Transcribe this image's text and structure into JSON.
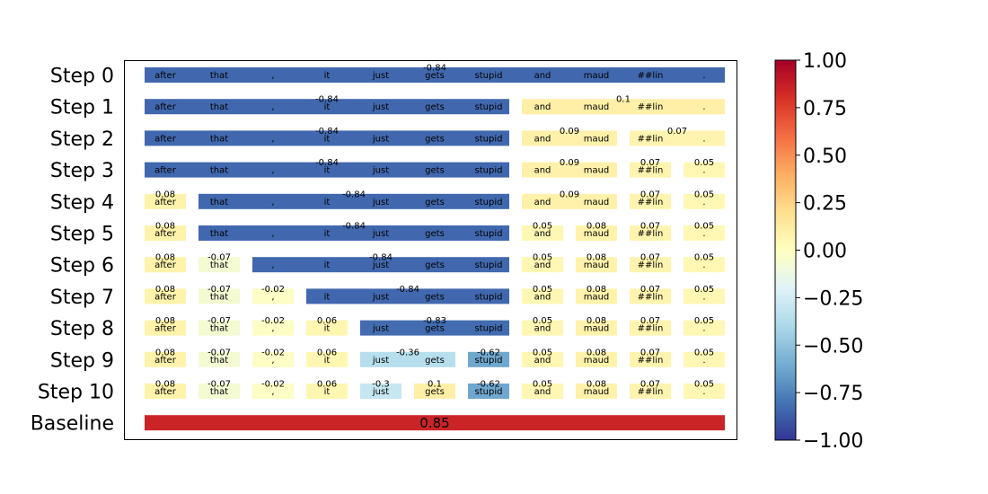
{
  "chart_data": {
    "type": "heatmap",
    "colormap": "RdYlBu_r",
    "color_range": [
      -1.0,
      1.0
    ],
    "colorbar_ticks": [
      "1.00",
      "0.75",
      "0.50",
      "0.25",
      "0.00",
      "−0.25",
      "−0.50",
      "−0.75",
      "−1.00"
    ],
    "tokens": [
      "after",
      "that",
      ",",
      "it",
      "just",
      "gets",
      "stupid",
      "and",
      "maud",
      "##lin",
      "."
    ],
    "rows": [
      {
        "label": "Step 0",
        "segments": [
          {
            "start": 0,
            "end": 10,
            "value": -0.84,
            "text": "-0.84"
          }
        ]
      },
      {
        "label": "Step 1",
        "segments": [
          {
            "start": 0,
            "end": 6,
            "value": -0.84,
            "text": "-0.84"
          },
          {
            "start": 7,
            "end": 10,
            "value": 0.1,
            "text": "0.1"
          }
        ]
      },
      {
        "label": "Step 2",
        "segments": [
          {
            "start": 0,
            "end": 6,
            "value": -0.84,
            "text": "-0.84"
          },
          {
            "start": 7,
            "end": 8,
            "value": 0.09,
            "text": "0.09"
          },
          {
            "start": 9,
            "end": 10,
            "value": 0.07,
            "text": "0.07"
          }
        ]
      },
      {
        "label": "Step 3",
        "segments": [
          {
            "start": 0,
            "end": 6,
            "value": -0.84,
            "text": "-0.84"
          },
          {
            "start": 7,
            "end": 8,
            "value": 0.09,
            "text": "0.09"
          },
          {
            "start": 9,
            "end": 9,
            "value": 0.07,
            "text": "0.07"
          },
          {
            "start": 10,
            "end": 10,
            "value": 0.05,
            "text": "0.05"
          }
        ]
      },
      {
        "label": "Step 4",
        "segments": [
          {
            "start": 0,
            "end": 0,
            "value": 0.08,
            "text": "0.08"
          },
          {
            "start": 1,
            "end": 6,
            "value": -0.84,
            "text": "-0.84"
          },
          {
            "start": 7,
            "end": 8,
            "value": 0.09,
            "text": "0.09"
          },
          {
            "start": 9,
            "end": 9,
            "value": 0.07,
            "text": "0.07"
          },
          {
            "start": 10,
            "end": 10,
            "value": 0.05,
            "text": "0.05"
          }
        ]
      },
      {
        "label": "Step 5",
        "segments": [
          {
            "start": 0,
            "end": 0,
            "value": 0.08,
            "text": "0.08"
          },
          {
            "start": 1,
            "end": 6,
            "value": -0.84,
            "text": "-0.84"
          },
          {
            "start": 7,
            "end": 7,
            "value": 0.05,
            "text": "0.05"
          },
          {
            "start": 8,
            "end": 8,
            "value": 0.08,
            "text": "0.08"
          },
          {
            "start": 9,
            "end": 9,
            "value": 0.07,
            "text": "0.07"
          },
          {
            "start": 10,
            "end": 10,
            "value": 0.05,
            "text": "0.05"
          }
        ]
      },
      {
        "label": "Step 6",
        "segments": [
          {
            "start": 0,
            "end": 0,
            "value": 0.08,
            "text": "0.08"
          },
          {
            "start": 1,
            "end": 1,
            "value": -0.07,
            "text": "-0.07"
          },
          {
            "start": 2,
            "end": 6,
            "value": -0.84,
            "text": "-0.84"
          },
          {
            "start": 7,
            "end": 7,
            "value": 0.05,
            "text": "0.05"
          },
          {
            "start": 8,
            "end": 8,
            "value": 0.08,
            "text": "0.08"
          },
          {
            "start": 9,
            "end": 9,
            "value": 0.07,
            "text": "0.07"
          },
          {
            "start": 10,
            "end": 10,
            "value": 0.05,
            "text": "0.05"
          }
        ]
      },
      {
        "label": "Step 7",
        "segments": [
          {
            "start": 0,
            "end": 0,
            "value": 0.08,
            "text": "0.08"
          },
          {
            "start": 1,
            "end": 1,
            "value": -0.07,
            "text": "-0.07"
          },
          {
            "start": 2,
            "end": 2,
            "value": -0.02,
            "text": "-0.02"
          },
          {
            "start": 3,
            "end": 6,
            "value": -0.84,
            "text": "-0.84"
          },
          {
            "start": 7,
            "end": 7,
            "value": 0.05,
            "text": "0.05"
          },
          {
            "start": 8,
            "end": 8,
            "value": 0.08,
            "text": "0.08"
          },
          {
            "start": 9,
            "end": 9,
            "value": 0.07,
            "text": "0.07"
          },
          {
            "start": 10,
            "end": 10,
            "value": 0.05,
            "text": "0.05"
          }
        ]
      },
      {
        "label": "Step 8",
        "segments": [
          {
            "start": 0,
            "end": 0,
            "value": 0.08,
            "text": "0.08"
          },
          {
            "start": 1,
            "end": 1,
            "value": -0.07,
            "text": "-0.07"
          },
          {
            "start": 2,
            "end": 2,
            "value": -0.02,
            "text": "-0.02"
          },
          {
            "start": 3,
            "end": 3,
            "value": 0.06,
            "text": "0.06"
          },
          {
            "start": 4,
            "end": 6,
            "value": -0.83,
            "text": "-0.83"
          },
          {
            "start": 7,
            "end": 7,
            "value": 0.05,
            "text": "0.05"
          },
          {
            "start": 8,
            "end": 8,
            "value": 0.08,
            "text": "0.08"
          },
          {
            "start": 9,
            "end": 9,
            "value": 0.07,
            "text": "0.07"
          },
          {
            "start": 10,
            "end": 10,
            "value": 0.05,
            "text": "0.05"
          }
        ]
      },
      {
        "label": "Step 9",
        "segments": [
          {
            "start": 0,
            "end": 0,
            "value": 0.08,
            "text": "0.08"
          },
          {
            "start": 1,
            "end": 1,
            "value": -0.07,
            "text": "-0.07"
          },
          {
            "start": 2,
            "end": 2,
            "value": -0.02,
            "text": "-0.02"
          },
          {
            "start": 3,
            "end": 3,
            "value": 0.06,
            "text": "0.06"
          },
          {
            "start": 4,
            "end": 5,
            "value": -0.36,
            "text": "-0.36"
          },
          {
            "start": 6,
            "end": 6,
            "value": -0.62,
            "text": "-0.62"
          },
          {
            "start": 7,
            "end": 7,
            "value": 0.05,
            "text": "0.05"
          },
          {
            "start": 8,
            "end": 8,
            "value": 0.08,
            "text": "0.08"
          },
          {
            "start": 9,
            "end": 9,
            "value": 0.07,
            "text": "0.07"
          },
          {
            "start": 10,
            "end": 10,
            "value": 0.05,
            "text": "0.05"
          }
        ]
      },
      {
        "label": "Step 10",
        "segments": [
          {
            "start": 0,
            "end": 0,
            "value": 0.08,
            "text": "0.08"
          },
          {
            "start": 1,
            "end": 1,
            "value": -0.07,
            "text": "-0.07"
          },
          {
            "start": 2,
            "end": 2,
            "value": -0.02,
            "text": "-0.02"
          },
          {
            "start": 3,
            "end": 3,
            "value": 0.06,
            "text": "0.06"
          },
          {
            "start": 4,
            "end": 4,
            "value": -0.3,
            "text": "-0.3"
          },
          {
            "start": 5,
            "end": 5,
            "value": 0.1,
            "text": "0.1"
          },
          {
            "start": 6,
            "end": 6,
            "value": -0.62,
            "text": "-0.62"
          },
          {
            "start": 7,
            "end": 7,
            "value": 0.05,
            "text": "0.05"
          },
          {
            "start": 8,
            "end": 8,
            "value": 0.08,
            "text": "0.08"
          },
          {
            "start": 9,
            "end": 9,
            "value": 0.07,
            "text": "0.07"
          },
          {
            "start": 10,
            "end": 10,
            "value": 0.05,
            "text": "0.05"
          }
        ]
      }
    ],
    "baseline": {
      "label": "Baseline",
      "value": 0.85,
      "text": "0.85"
    }
  }
}
